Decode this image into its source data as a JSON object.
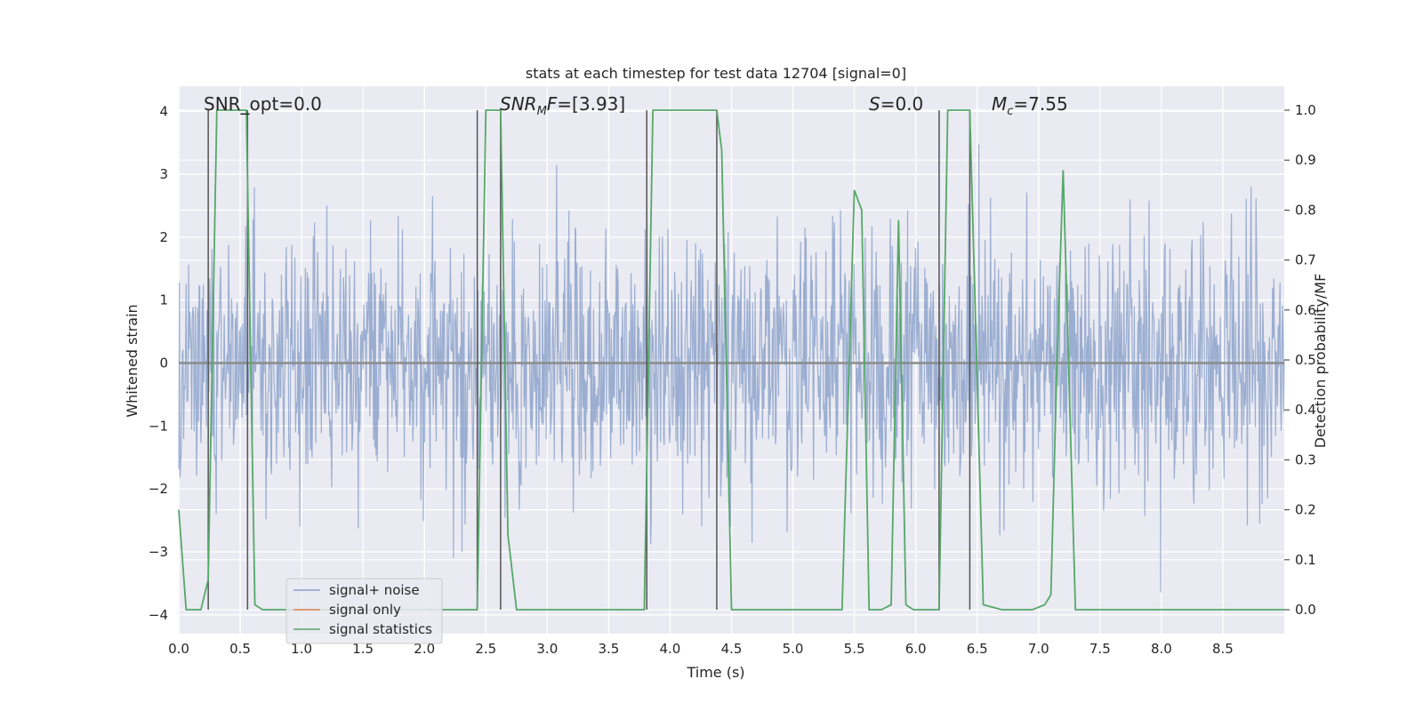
{
  "chart_data": {
    "type": "line",
    "title": "stats at each timestep for test data 12704 [signal=0]",
    "xlabel": "Time (s)",
    "ylabel": "Whitened strain",
    "y2label": "Detection probability/MF",
    "xlim": [
      0.0,
      9.0
    ],
    "ylim": [
      -4.3,
      4.4
    ],
    "y2lim": [
      -0.048,
      1.048
    ],
    "xticks": [
      0.0,
      0.5,
      1.0,
      1.5,
      2.0,
      2.5,
      3.0,
      3.5,
      4.0,
      4.5,
      5.0,
      5.5,
      6.0,
      6.5,
      7.0,
      7.5,
      8.0,
      8.5
    ],
    "xtick_labels": [
      "0.0",
      "0.5",
      "1.0",
      "1.5",
      "2.0",
      "2.5",
      "3.0",
      "3.5",
      "4.0",
      "4.5",
      "5.0",
      "5.5",
      "6.0",
      "6.5",
      "7.0",
      "7.5",
      "8.0",
      "8.5"
    ],
    "yticks": [
      -4,
      -3,
      -2,
      -1,
      0,
      1,
      2,
      3,
      4
    ],
    "ytick_labels": [
      "−4",
      "−3",
      "−2",
      "−1",
      "0",
      "1",
      "2",
      "3",
      "4"
    ],
    "y2ticks": [
      0.0,
      0.1,
      0.2,
      0.3,
      0.4,
      0.5,
      0.6,
      0.7,
      0.8,
      0.9,
      1.0
    ],
    "y2tick_labels": [
      "0.0",
      "0.1",
      "0.2",
      "0.3",
      "0.4",
      "0.5",
      "0.6",
      "0.7",
      "0.8",
      "0.9",
      "1.0"
    ],
    "grid": true,
    "legend_position": "lower-left",
    "annotations": [
      {
        "text": "SNR_opt=0.0",
        "x": 0.2
      },
      {
        "text": "SNR_MF=[3.93]",
        "x": 2.6
      },
      {
        "text": "S=0.0",
        "x": 5.6
      },
      {
        "text": "M_c=7.55",
        "x": 6.6
      }
    ],
    "noise_band": {
      "typical_lower": -1.5,
      "typical_upper": 1.6,
      "peak_upper": 4.0,
      "peak_lower": -3.9
    },
    "vertical_markers": [
      0.24,
      0.56,
      2.43,
      2.62,
      3.81,
      4.38,
      6.19,
      6.44
    ],
    "series": [
      {
        "name": "signal+ noise",
        "color": "#4c72b0",
        "description_values": "dense noise between about -2 and 2 with spikes near -3.9 and 4.0"
      },
      {
        "name": "signal only",
        "color": "#dd8452",
        "x": [
          0.0,
          9.0
        ],
        "y": [
          0.0,
          0.0
        ]
      },
      {
        "name": "signal statistics",
        "color": "#55a868",
        "axis": "right",
        "x": [
          0.0,
          0.06,
          0.18,
          0.24,
          0.31,
          0.55,
          0.62,
          0.68,
          0.75,
          2.1,
          2.43,
          2.5,
          2.62,
          2.68,
          2.75,
          3.7,
          3.79,
          3.86,
          4.38,
          4.42,
          4.5,
          4.6,
          5.4,
          5.5,
          5.56,
          5.62,
          5.72,
          5.8,
          5.86,
          5.92,
          5.98,
          6.06,
          6.12,
          6.19,
          6.26,
          6.44,
          6.55,
          6.7,
          6.95,
          7.05,
          7.1,
          7.15,
          7.2,
          7.3,
          7.4,
          9.0
        ],
        "y": [
          0.2,
          0.0,
          0.0,
          0.06,
          1.0,
          1.0,
          0.01,
          0.0,
          0.0,
          0.0,
          0.0,
          1.0,
          1.0,
          0.15,
          0.0,
          0.0,
          0.0,
          1.0,
          1.0,
          0.92,
          0.0,
          0.0,
          0.0,
          0.84,
          0.8,
          0.0,
          0.0,
          0.01,
          0.78,
          0.01,
          0.0,
          0.0,
          0.0,
          0.0,
          1.0,
          1.0,
          0.01,
          0.0,
          0.0,
          0.01,
          0.03,
          0.5,
          0.88,
          0.0,
          0.0,
          0.0
        ]
      }
    ]
  }
}
